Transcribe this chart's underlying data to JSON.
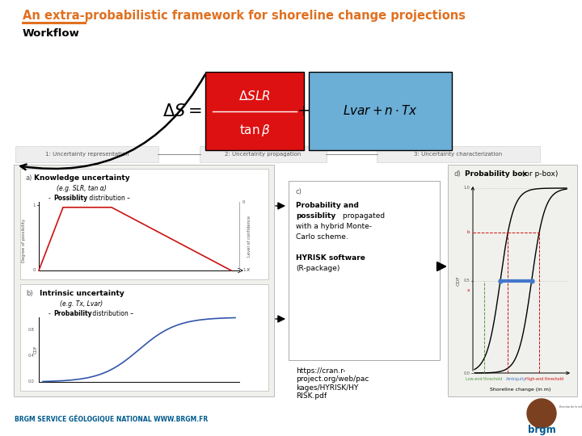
{
  "title": "An extra-probabilistic framework for shoreline change projections",
  "title_color": "#E07020",
  "title_fontsize": 10.5,
  "subtitle": "Workflow",
  "subtitle_fontsize": 9.5,
  "bg_color": "#FFFFFF",
  "footer_text": "BRGM SERVICE GÉOLOGIQUE NATIONAL WWW.BRGM.FR",
  "footer_color": "#005A8E",
  "footer_fontsize": 5.5,
  "url_text": "https://cran.r-\nproject.org/web/pac\nkages/HYRISK/HY\nRISK.pdf",
  "url_fontsize": 6.5,
  "red_box_color": "#DD1111",
  "blue_box_color": "#6BAED6",
  "step1_label": "1: Uncertainty representation",
  "step2_label": "2: Uncertainty propagation",
  "step3_label": "3: Uncertainty characterization",
  "step_fontsize": 5.0,
  "box_a_title": "Knowledge uncertainty",
  "box_a_sub1": "(e.g. SLR, tan α)",
  "box_a_sub2": "Possiblity distribution –",
  "box_b_title": "Intrinsic uncertainty",
  "box_b_sub1": "(e.g. Tx, Lvar)",
  "box_b_sub2": "Probability distribution –",
  "box_c_title": "c)",
  "box_c_bold1": "Probability and",
  "box_c_bold2": "possiblity",
  "box_c_rest2": " propagated",
  "box_c_text3": "with a hybrid Monte-",
  "box_c_text4": "Carlo scheme.",
  "box_c_text5": "HYRISK software",
  "box_c_text6": "(R-package)",
  "box_d_label": "d)",
  "box_d_title": "Probability box",
  "box_d_title2": " (or p-box)",
  "panel_bg": "#F2F2EE",
  "arrow_color": "#111111"
}
